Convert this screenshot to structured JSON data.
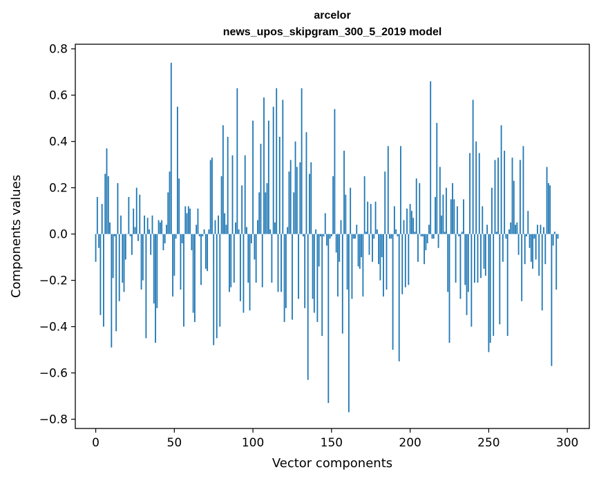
{
  "chart_data": {
    "type": "bar",
    "title": "arcelor",
    "subtitle": "news_upos_skipgram_300_5_2019 model",
    "xlabel": "Vector components",
    "ylabel": "Components values",
    "xlim": [
      -13,
      314
    ],
    "ylim": [
      -0.84,
      0.82
    ],
    "xticks": [
      0,
      50,
      100,
      150,
      200,
      250,
      300
    ],
    "xtick_labels": [
      "0",
      "50",
      "100",
      "150",
      "200",
      "250",
      "300"
    ],
    "yticks": [
      -0.8,
      -0.6,
      -0.4,
      -0.2,
      0.0,
      0.2,
      0.4,
      0.6,
      0.8
    ],
    "ytick_labels": [
      "−0.8",
      "−0.6",
      "−0.4",
      "−0.2",
      "0.0",
      "0.2",
      "0.4",
      "0.6",
      "0.8"
    ],
    "grid": false,
    "bar_color": "#1f77b4",
    "values": [
      -0.12,
      0.16,
      -0.06,
      -0.35,
      0.13,
      -0.4,
      0.26,
      0.37,
      0.25,
      0.05,
      -0.49,
      -0.19,
      -0.01,
      -0.42,
      0.22,
      -0.29,
      0.08,
      -0.21,
      -0.25,
      -0.11,
      0.0,
      0.16,
      -0.01,
      -0.09,
      0.11,
      0.03,
      0.2,
      -0.03,
      0.17,
      -0.24,
      -0.2,
      0.08,
      -0.45,
      0.07,
      0.02,
      -0.09,
      0.08,
      -0.3,
      -0.47,
      -0.32,
      0.06,
      0.05,
      0.06,
      -0.07,
      -0.04,
      0.04,
      0.18,
      0.27,
      0.74,
      -0.27,
      -0.18,
      -0.02,
      0.55,
      0.24,
      -0.24,
      -0.04,
      -0.4,
      0.12,
      0.09,
      0.12,
      0.11,
      -0.07,
      -0.34,
      -0.38,
      0.04,
      0.11,
      -0.01,
      -0.22,
      -0.01,
      0.02,
      -0.15,
      -0.16,
      0.02,
      0.32,
      0.33,
      -0.48,
      0.06,
      -0.45,
      0.08,
      -0.4,
      0.25,
      0.47,
      0.09,
      0.04,
      0.42,
      -0.25,
      -0.23,
      0.34,
      -0.21,
      0.05,
      0.63,
      0.02,
      -0.29,
      0.21,
      -0.34,
      0.34,
      0.03,
      -0.21,
      -0.33,
      -0.04,
      0.49,
      -0.11,
      -0.21,
      0.06,
      0.18,
      0.39,
      -0.23,
      0.59,
      0.18,
      0.22,
      0.49,
      0.02,
      -0.21,
      0.55,
      0.05,
      0.63,
      -0.25,
      0.42,
      -0.25,
      0.58,
      -0.38,
      -0.32,
      0.03,
      0.27,
      0.32,
      -0.37,
      0.18,
      0.4,
      0.29,
      -0.28,
      0.31,
      0.63,
      -0.01,
      -0.32,
      0.44,
      -0.63,
      0.26,
      0.31,
      -0.28,
      -0.34,
      0.02,
      -0.38,
      -0.14,
      -0.01,
      -0.44,
      -0.01,
      0.09,
      -0.05,
      -0.73,
      -0.02,
      -0.01,
      0.25,
      0.54,
      -0.08,
      -0.27,
      -0.12,
      0.06,
      -0.43,
      0.36,
      0.17,
      -0.24,
      -0.77,
      0.2,
      -0.28,
      -0.02,
      -0.02,
      0.04,
      -0.14,
      -0.15,
      -0.1,
      -0.27,
      0.25,
      0.01,
      0.14,
      -0.09,
      0.13,
      -0.12,
      -0.02,
      0.14,
      0.02,
      -0.13,
      -0.2,
      -0.1,
      -0.27,
      0.27,
      -0.24,
      0.38,
      -0.02,
      -0.02,
      -0.5,
      0.12,
      0.02,
      -0.01,
      -0.55,
      0.38,
      -0.26,
      0.06,
      -0.23,
      0.11,
      -0.22,
      0.13,
      0.1,
      0.07,
      0.01,
      0.24,
      -0.12,
      0.22,
      -0.01,
      -0.01,
      -0.13,
      -0.07,
      -0.04,
      0.04,
      0.66,
      -0.02,
      -0.02,
      0.16,
      0.48,
      -0.06,
      0.29,
      0.08,
      0.17,
      0.01,
      0.2,
      -0.25,
      -0.47,
      0.15,
      0.22,
      0.15,
      -0.21,
      0.12,
      -0.01,
      -0.28,
      0.01,
      0.15,
      -0.22,
      -0.35,
      -0.25,
      0.35,
      -0.4,
      0.58,
      -0.21,
      0.4,
      -0.21,
      0.35,
      -0.19,
      0.12,
      -0.15,
      -0.18,
      0.04,
      -0.51,
      -0.47,
      0.2,
      -0.44,
      0.32,
      0.01,
      0.33,
      -0.39,
      0.47,
      -0.12,
      0.36,
      -0.02,
      -0.44,
      0.02,
      0.05,
      0.33,
      0.23,
      0.04,
      0.05,
      -0.09,
      0.32,
      -0.29,
      0.38,
      -0.13,
      -0.01,
      0.1,
      -0.06,
      -0.12,
      -0.15,
      -0.02,
      -0.11,
      0.04,
      -0.18,
      0.04,
      -0.33,
      0.03,
      -0.13,
      0.29,
      0.22,
      0.21,
      -0.57,
      -0.05,
      0.01,
      -0.24,
      -0.02
    ]
  }
}
